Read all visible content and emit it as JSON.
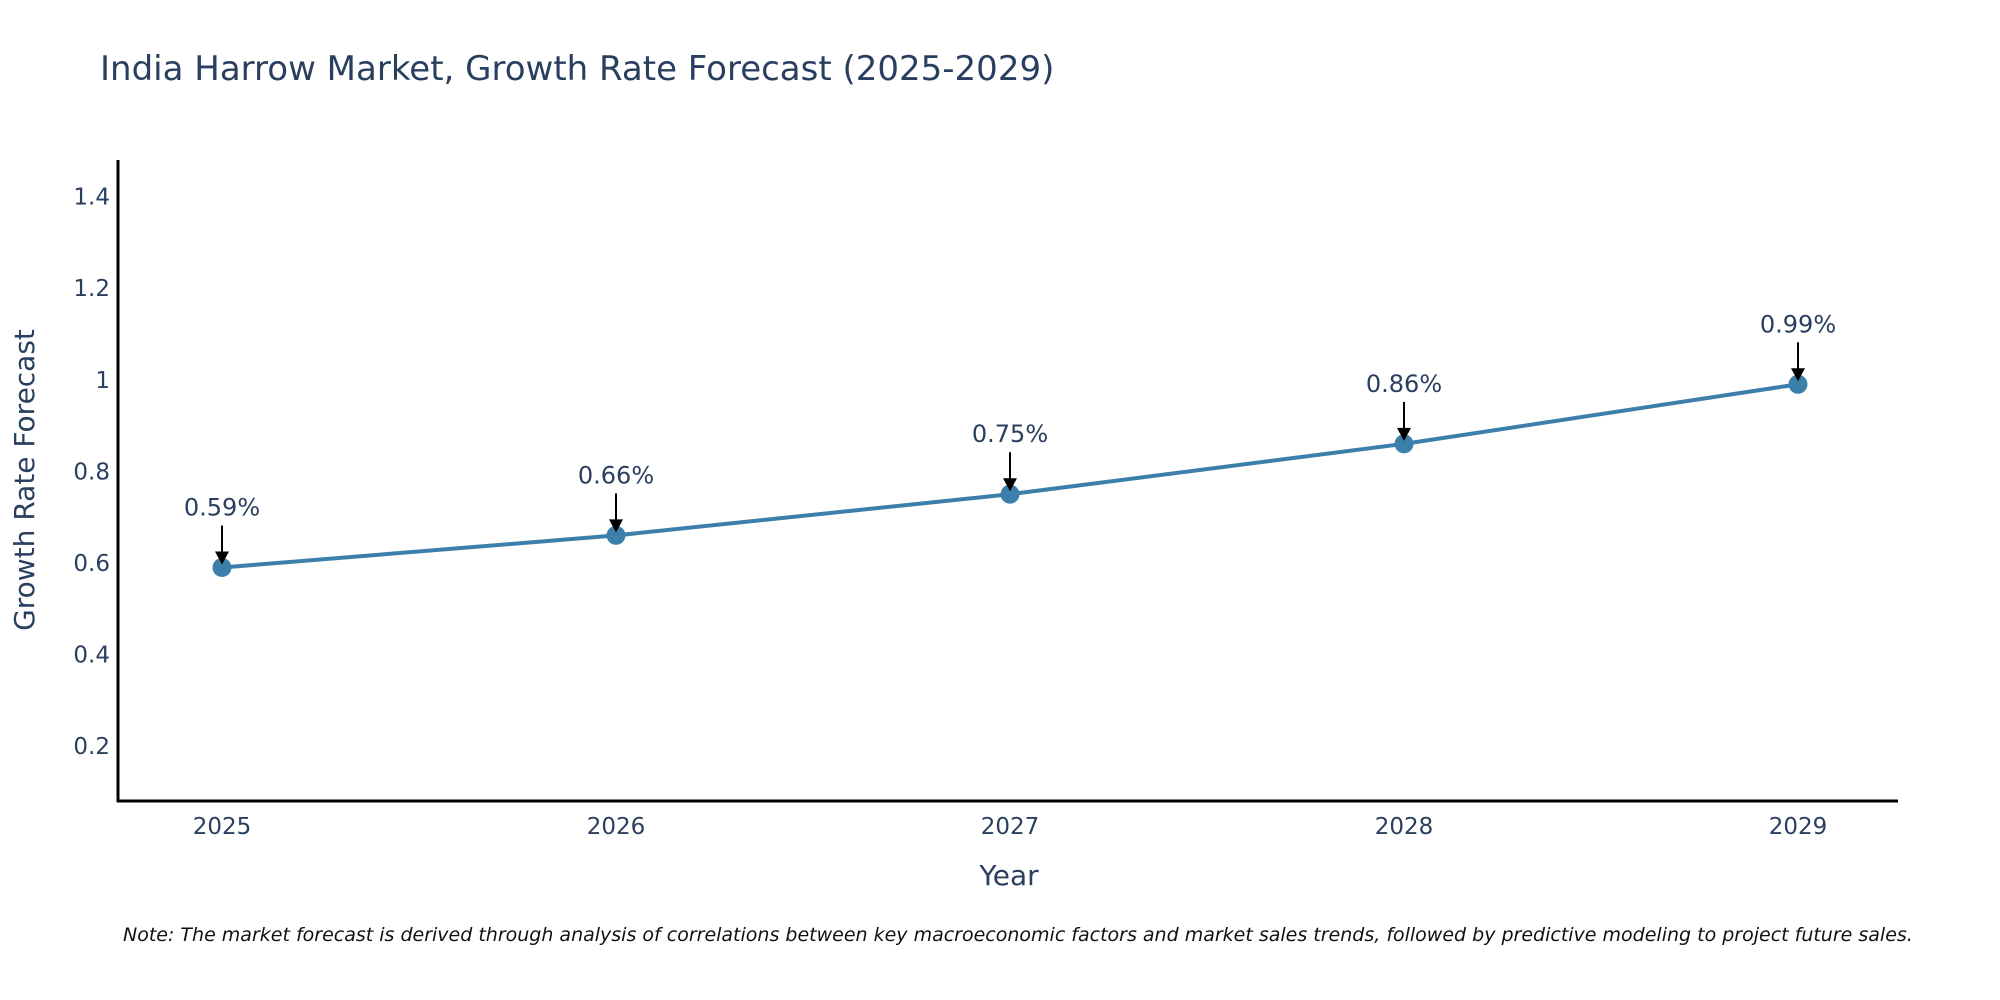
{
  "chart_data": {
    "type": "line",
    "title": "India Harrow Market, Growth Rate Forecast (2025-2029)",
    "xlabel": "Year",
    "ylabel": "Growth Rate Forecast",
    "categories": [
      "2025",
      "2026",
      "2027",
      "2028",
      "2029"
    ],
    "series": [
      {
        "name": "Growth Rate Forecast",
        "values": [
          0.59,
          0.66,
          0.75,
          0.86,
          0.99
        ],
        "labels": [
          "0.59%",
          "0.66%",
          "0.75%",
          "0.86%",
          "0.99%"
        ]
      }
    ],
    "ylim": [
      0.08,
      1.48
    ],
    "yticks": [
      0.2,
      0.4,
      0.6,
      0.8,
      1.0,
      1.2,
      1.4
    ],
    "ytick_labels": [
      "0.2",
      "0.4",
      "0.6",
      "0.8",
      "1",
      "1.2",
      "1.4"
    ],
    "grid": false,
    "legend": "none",
    "colors": {
      "line": "#3d7fab",
      "marker": "#3d7fab",
      "axis": "#000000",
      "arrow": "#000000"
    }
  },
  "footnote": "Note: The market forecast is derived through analysis of correlations between key macroeconomic factors and market sales trends, followed by predictive modeling to project future sales."
}
